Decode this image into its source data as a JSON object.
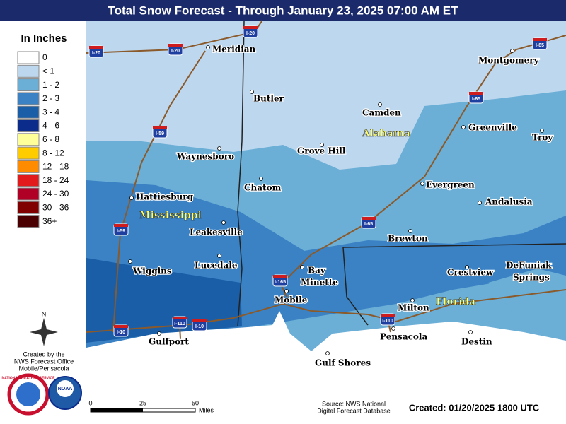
{
  "title": "Total Snow Forecast - Through January 23, 2025 07:00 AM ET",
  "legend": {
    "title": "In Inches",
    "items": [
      {
        "label": "0",
        "color": "#ffffff"
      },
      {
        "label": "< 1",
        "color": "#bdd7ee"
      },
      {
        "label": "1 - 2",
        "color": "#6baed6"
      },
      {
        "label": "2 - 3",
        "color": "#3a82c4"
      },
      {
        "label": "3 - 4",
        "color": "#1a5ea8"
      },
      {
        "label": "4 - 6",
        "color": "#0c2c8c"
      },
      {
        "label": "6 - 8",
        "color": "#ffff99"
      },
      {
        "label": "8 - 12",
        "color": "#ffcc00"
      },
      {
        "label": "12 - 18",
        "color": "#ff8c00"
      },
      {
        "label": "18 - 24",
        "color": "#e31a1c"
      },
      {
        "label": "24 - 30",
        "color": "#b10026"
      },
      {
        "label": "30 - 36",
        "color": "#800000"
      },
      {
        "label": "36+",
        "color": "#4a0000"
      }
    ]
  },
  "cities": [
    [
      "Meridian"
    ],
    [
      "Butler"
    ],
    [
      "Camden"
    ],
    [
      "Greenville"
    ],
    [
      "Troy"
    ],
    [
      "Montgomery"
    ],
    [
      "Grove Hill"
    ],
    [
      "Waynesboro"
    ],
    [
      "Chatom"
    ],
    [
      "Evergreen"
    ],
    [
      "Hattiesburg"
    ],
    [
      "Andalusia"
    ],
    [
      "Leakesville"
    ],
    [
      "Brewton"
    ],
    [
      "Lucedale"
    ],
    [
      "Wiggins"
    ],
    [
      "Bay",
      "Minette"
    ],
    [
      "Mobile"
    ],
    [
      "Crestview"
    ],
    [
      "DeFuniak",
      "Springs"
    ],
    [
      "Milton"
    ],
    [
      "Pensacola"
    ],
    [
      "Gulfport"
    ],
    [
      "Destin"
    ],
    [
      "Gulf Shores"
    ]
  ],
  "states": [
    "Alabama",
    "Mississippi",
    "Florida"
  ],
  "interstates": [
    "I-20",
    "I-20",
    "I-20",
    "I-85",
    "I-65",
    "I-59",
    "I-59",
    "I-65",
    "I-165",
    "I-10",
    "I-110",
    "I-10",
    "I-110"
  ],
  "compass": "N",
  "credits": [
    "Created by the",
    "NWS Forecast Office",
    "Mobile/Pensacola"
  ],
  "logos": [
    "NATIONAL WEATHER SERVICE",
    "NOAA"
  ],
  "scale": {
    "labels": [
      "0",
      "25",
      "50"
    ],
    "unit": "Miles"
  },
  "source": [
    "Source: NWS National",
    "Digital Forecast Database"
  ],
  "created": "Created: 01/20/2025 1800 UTC"
}
